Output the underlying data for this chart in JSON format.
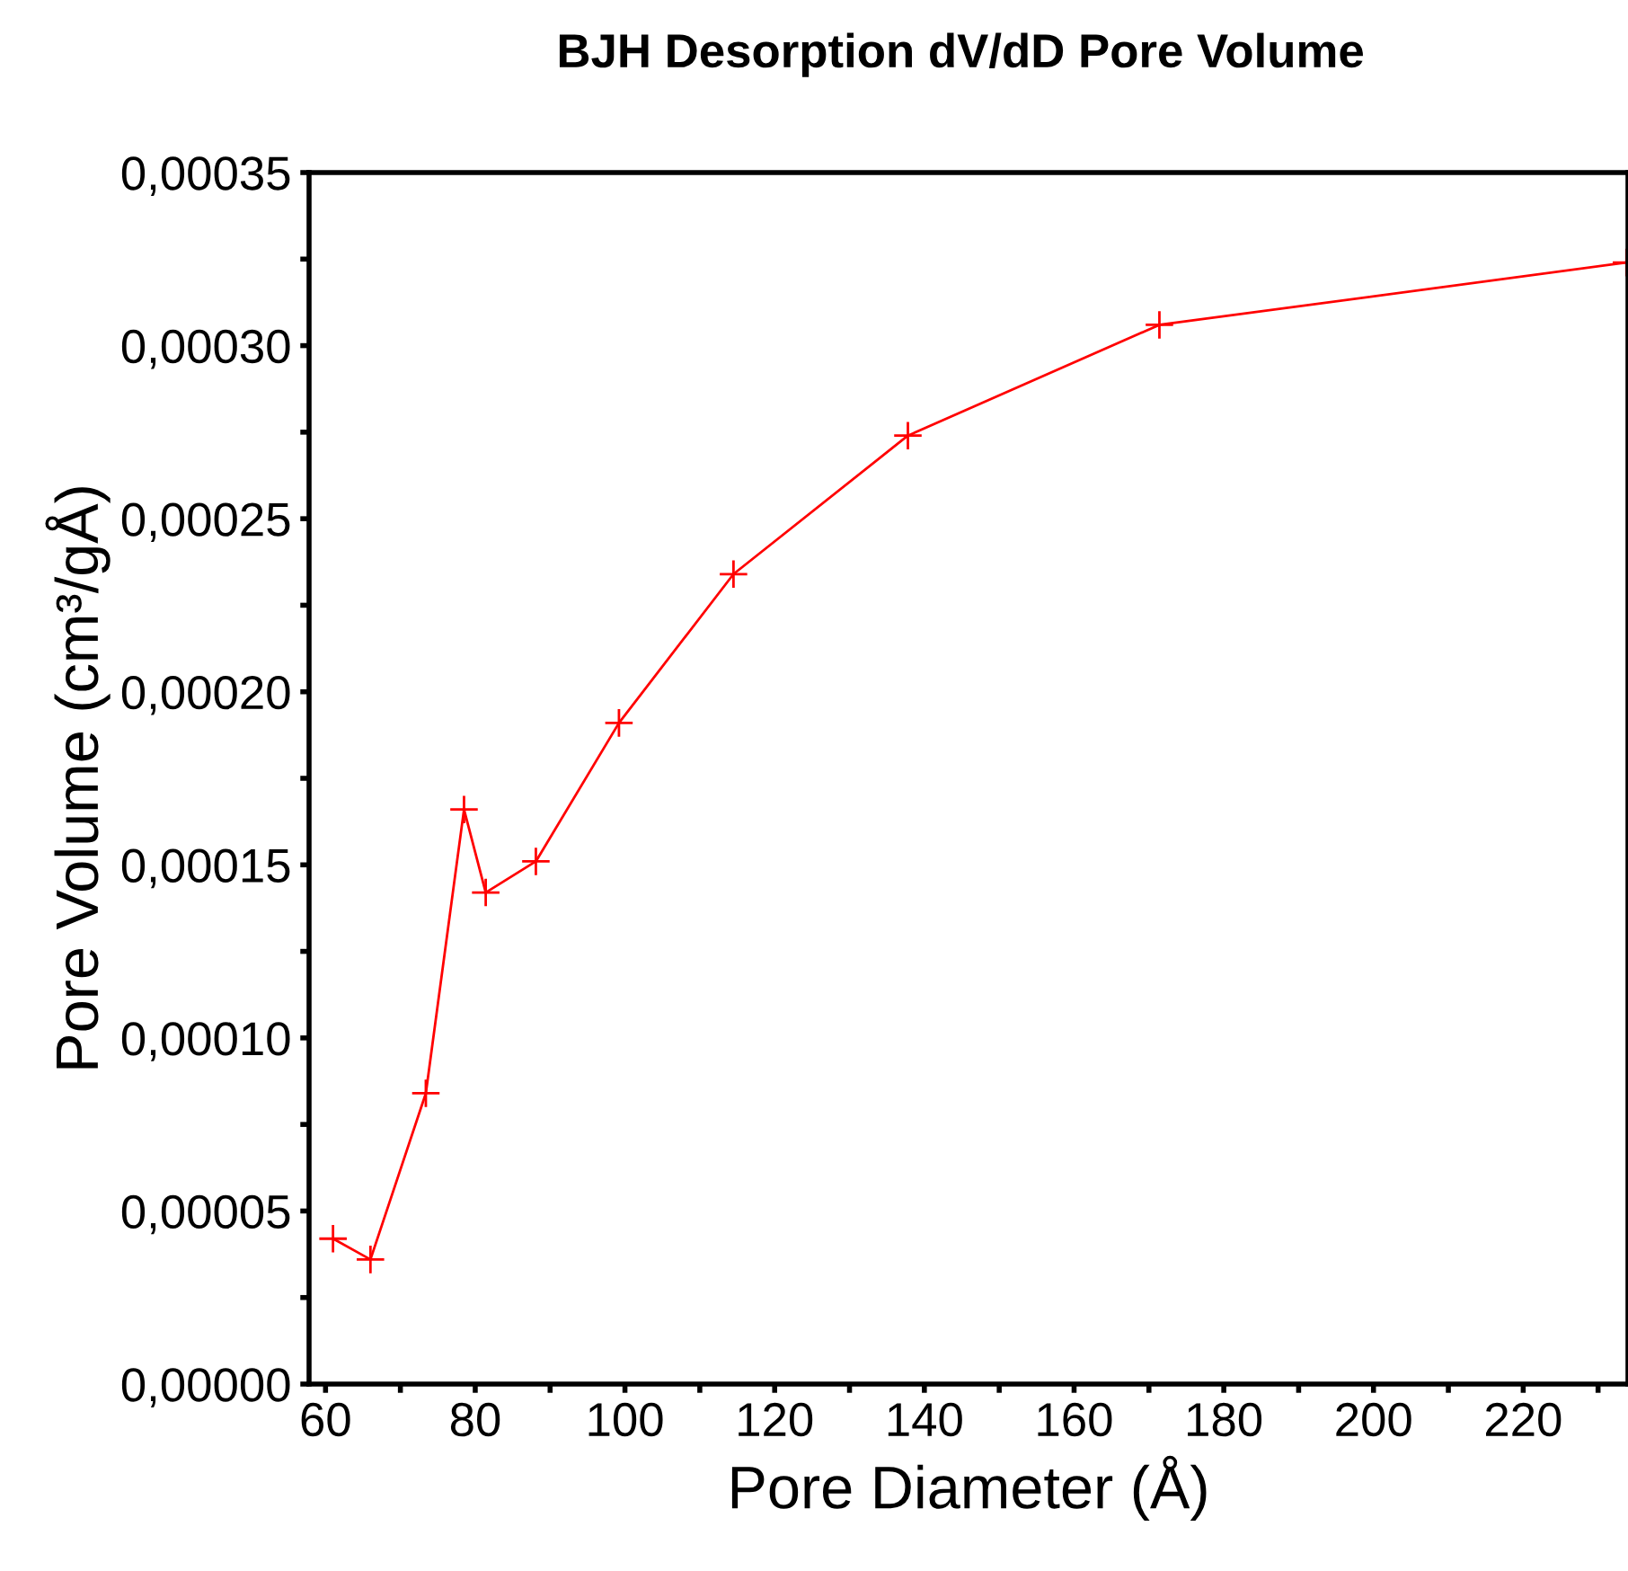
{
  "chart_data": {
    "type": "line",
    "title": "BJH Desorption dV/dD Pore Volume",
    "xlabel": "Pore Diameter (Å)",
    "ylabel": "Pore Volume (cm³/gÅ)",
    "x": [
      61,
      66,
      73.4,
      78.5,
      81.4,
      88.1,
      99.2,
      114.5,
      137.8,
      171.4,
      233.8
    ],
    "series": [
      {
        "color": "#ff0000",
        "values": [
          4.2e-05,
          3.6e-05,
          8.4e-05,
          0.000166,
          0.000142,
          0.000151,
          0.000191,
          0.000234,
          0.000274,
          0.000306,
          0.000324
        ]
      }
    ],
    "marker": "cross",
    "line_style": "solid",
    "grid": false,
    "legend": false,
    "xlim": [
      57.8,
      234
    ],
    "xticks": [
      60,
      {
        "value": 70,
        "label": null
      },
      80,
      {
        "value": 90,
        "label": null
      },
      100,
      {
        "value": 110,
        "label": null
      },
      120,
      {
        "value": 130,
        "label": null
      },
      140,
      {
        "value": 150,
        "label": null
      },
      160,
      {
        "value": 170,
        "label": null
      },
      180,
      {
        "value": 190,
        "label": null
      },
      200,
      {
        "value": 210,
        "label": null
      },
      220,
      {
        "value": 230,
        "label": null
      }
    ],
    "ylim": [
      0,
      0.00035
    ],
    "yticks": [
      {
        "value": 0,
        "label": "0,00000"
      },
      {
        "value": 2.5e-05,
        "label": null
      },
      {
        "value": 5e-05,
        "label": "0,00005"
      },
      {
        "value": 7.5e-05,
        "label": null
      },
      {
        "value": 0.0001,
        "label": "0,00010"
      },
      {
        "value": 0.000125,
        "label": null
      },
      {
        "value": 0.00015,
        "label": "0,00015"
      },
      {
        "value": 0.000175,
        "label": null
      },
      {
        "value": 0.0002,
        "label": "0,00020"
      },
      {
        "value": 0.000225,
        "label": null
      },
      {
        "value": 0.00025,
        "label": "0,00025"
      },
      {
        "value": 0.000275,
        "label": null
      },
      {
        "value": 0.0003,
        "label": "0,00030"
      },
      {
        "value": 0.000325,
        "label": null
      },
      {
        "value": 0.00035,
        "label": "0,00035"
      }
    ]
  }
}
